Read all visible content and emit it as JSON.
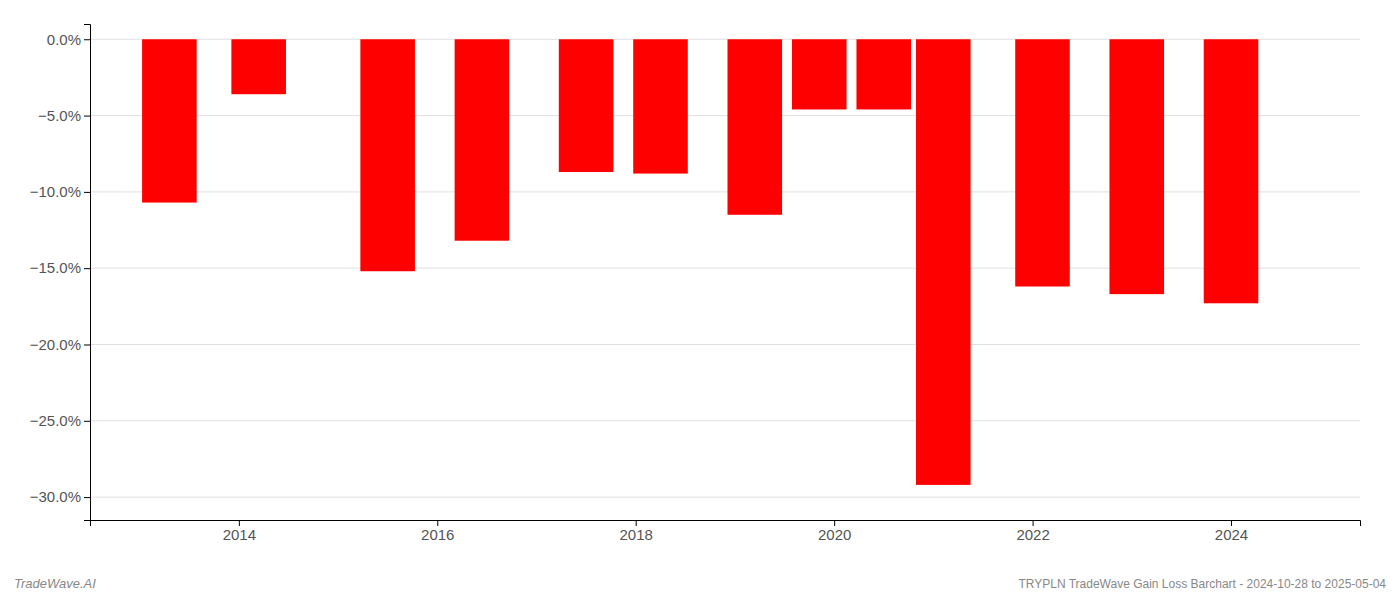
{
  "chart_data": {
    "type": "bar",
    "x": [
      2013.3,
      2014.2,
      2015.5,
      2016.45,
      2017.5,
      2018.25,
      2019.2,
      2019.85,
      2020.5,
      2021.1,
      2022.1,
      2023.05,
      2024.0
    ],
    "values": [
      -10.7,
      -3.6,
      -15.2,
      -13.2,
      -8.7,
      -8.8,
      -11.5,
      -4.6,
      -4.6,
      -29.2,
      -16.2,
      -16.7,
      -17.3
    ],
    "color": "#ff0000",
    "xlim": [
      2012.5,
      2025.3
    ],
    "ylim": [
      -31.5,
      1.0
    ],
    "xticks": [
      2014,
      2016,
      2018,
      2020,
      2022,
      2024
    ],
    "yticks": [
      {
        "value": 0.0,
        "label": "0.0%"
      },
      {
        "value": -5.0,
        "label": "−5.0%"
      },
      {
        "value": -10.0,
        "label": "−10.0%"
      },
      {
        "value": -15.0,
        "label": "−15.0%"
      },
      {
        "value": -20.0,
        "label": "−20.0%"
      },
      {
        "value": -25.0,
        "label": "−25.0%"
      },
      {
        "value": -30.0,
        "label": "−30.0%"
      }
    ],
    "grid": true,
    "annotations": [
      "TradeWave.AI",
      "TRYPLN TradeWave Gain Loss Barchart - 2024-10-28 to 2025-05-04"
    ]
  }
}
